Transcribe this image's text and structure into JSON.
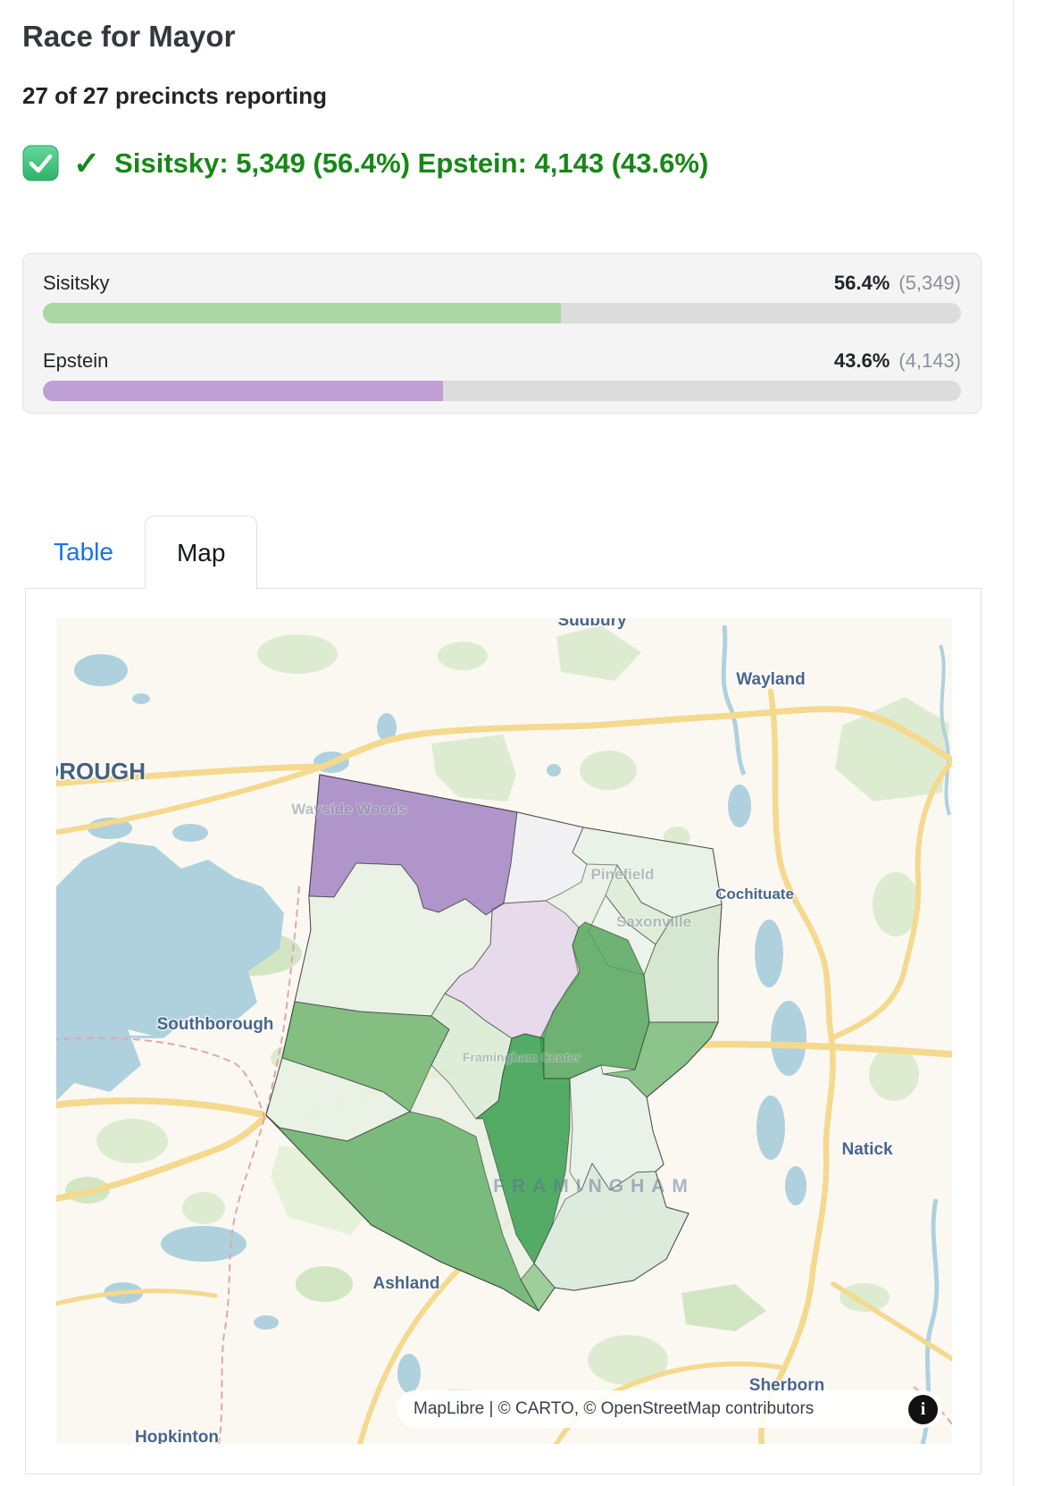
{
  "header": {
    "title": "Race for Mayor",
    "subtitle": "27 of 27 precincts reporting"
  },
  "summary": {
    "checkbox_icon": "checked-green-emoji",
    "check": "✓",
    "text": "Sisitsky: 5,349 (56.4%) Epstein: 4,143 (43.6%)",
    "color": "#178717"
  },
  "results": {
    "candidates": [
      {
        "name": "Sisitsky",
        "pct": "56.4%",
        "votes": "(5,349)",
        "pct_value": 56.4,
        "bar_color": "#a9d8a2"
      },
      {
        "name": "Epstein",
        "pct": "43.6%",
        "votes": "(4,143)",
        "pct_value": 43.6,
        "bar_color": "#bfa0d6"
      }
    ],
    "track_color": "#dcdcdc"
  },
  "tabs": [
    {
      "label": "Table",
      "active": false
    },
    {
      "label": "Map",
      "active": true
    }
  ],
  "chart_data": {
    "type": "bar",
    "title": "Race for Mayor",
    "subtitle": "27 of 27 precincts reporting",
    "categories": [
      "Sisitsky",
      "Epstein"
    ],
    "values": [
      56.4,
      43.6
    ],
    "votes": [
      5349,
      4143
    ],
    "value_labels": [
      "56.4% (5,349)",
      "43.6% (4,143)"
    ],
    "colors": [
      "#a9d8a2",
      "#bfa0d6"
    ],
    "xlim": [
      0,
      100
    ],
    "orientation": "horizontal",
    "winner": "Sisitsky"
  },
  "map": {
    "labels": [
      {
        "text": "Sudbury"
      },
      {
        "text": "Wayland"
      },
      {
        "text": "MARLBOROUGH"
      },
      {
        "text": "Wayside Woods"
      },
      {
        "text": "Pinefield"
      },
      {
        "text": "Saxonville"
      },
      {
        "text": "Cochituate"
      },
      {
        "text": "Southborough"
      },
      {
        "text": "Natick"
      },
      {
        "text": "FRAMINGHAM"
      },
      {
        "text": "Framingham Center"
      },
      {
        "text": "Ashland"
      },
      {
        "text": "Sherborn"
      },
      {
        "text": "Hopkinton"
      }
    ],
    "attribution": {
      "text": "MapLibre | © CARTO, © OpenStreetMap contributors",
      "info": "i"
    },
    "legend_colors": {
      "sisitsky_strong": "#2e9a46",
      "sisitsky_light": "#e8f3e8",
      "epstein_strong": "#a07ec2",
      "epstein_light": "#e5d4ec"
    }
  }
}
